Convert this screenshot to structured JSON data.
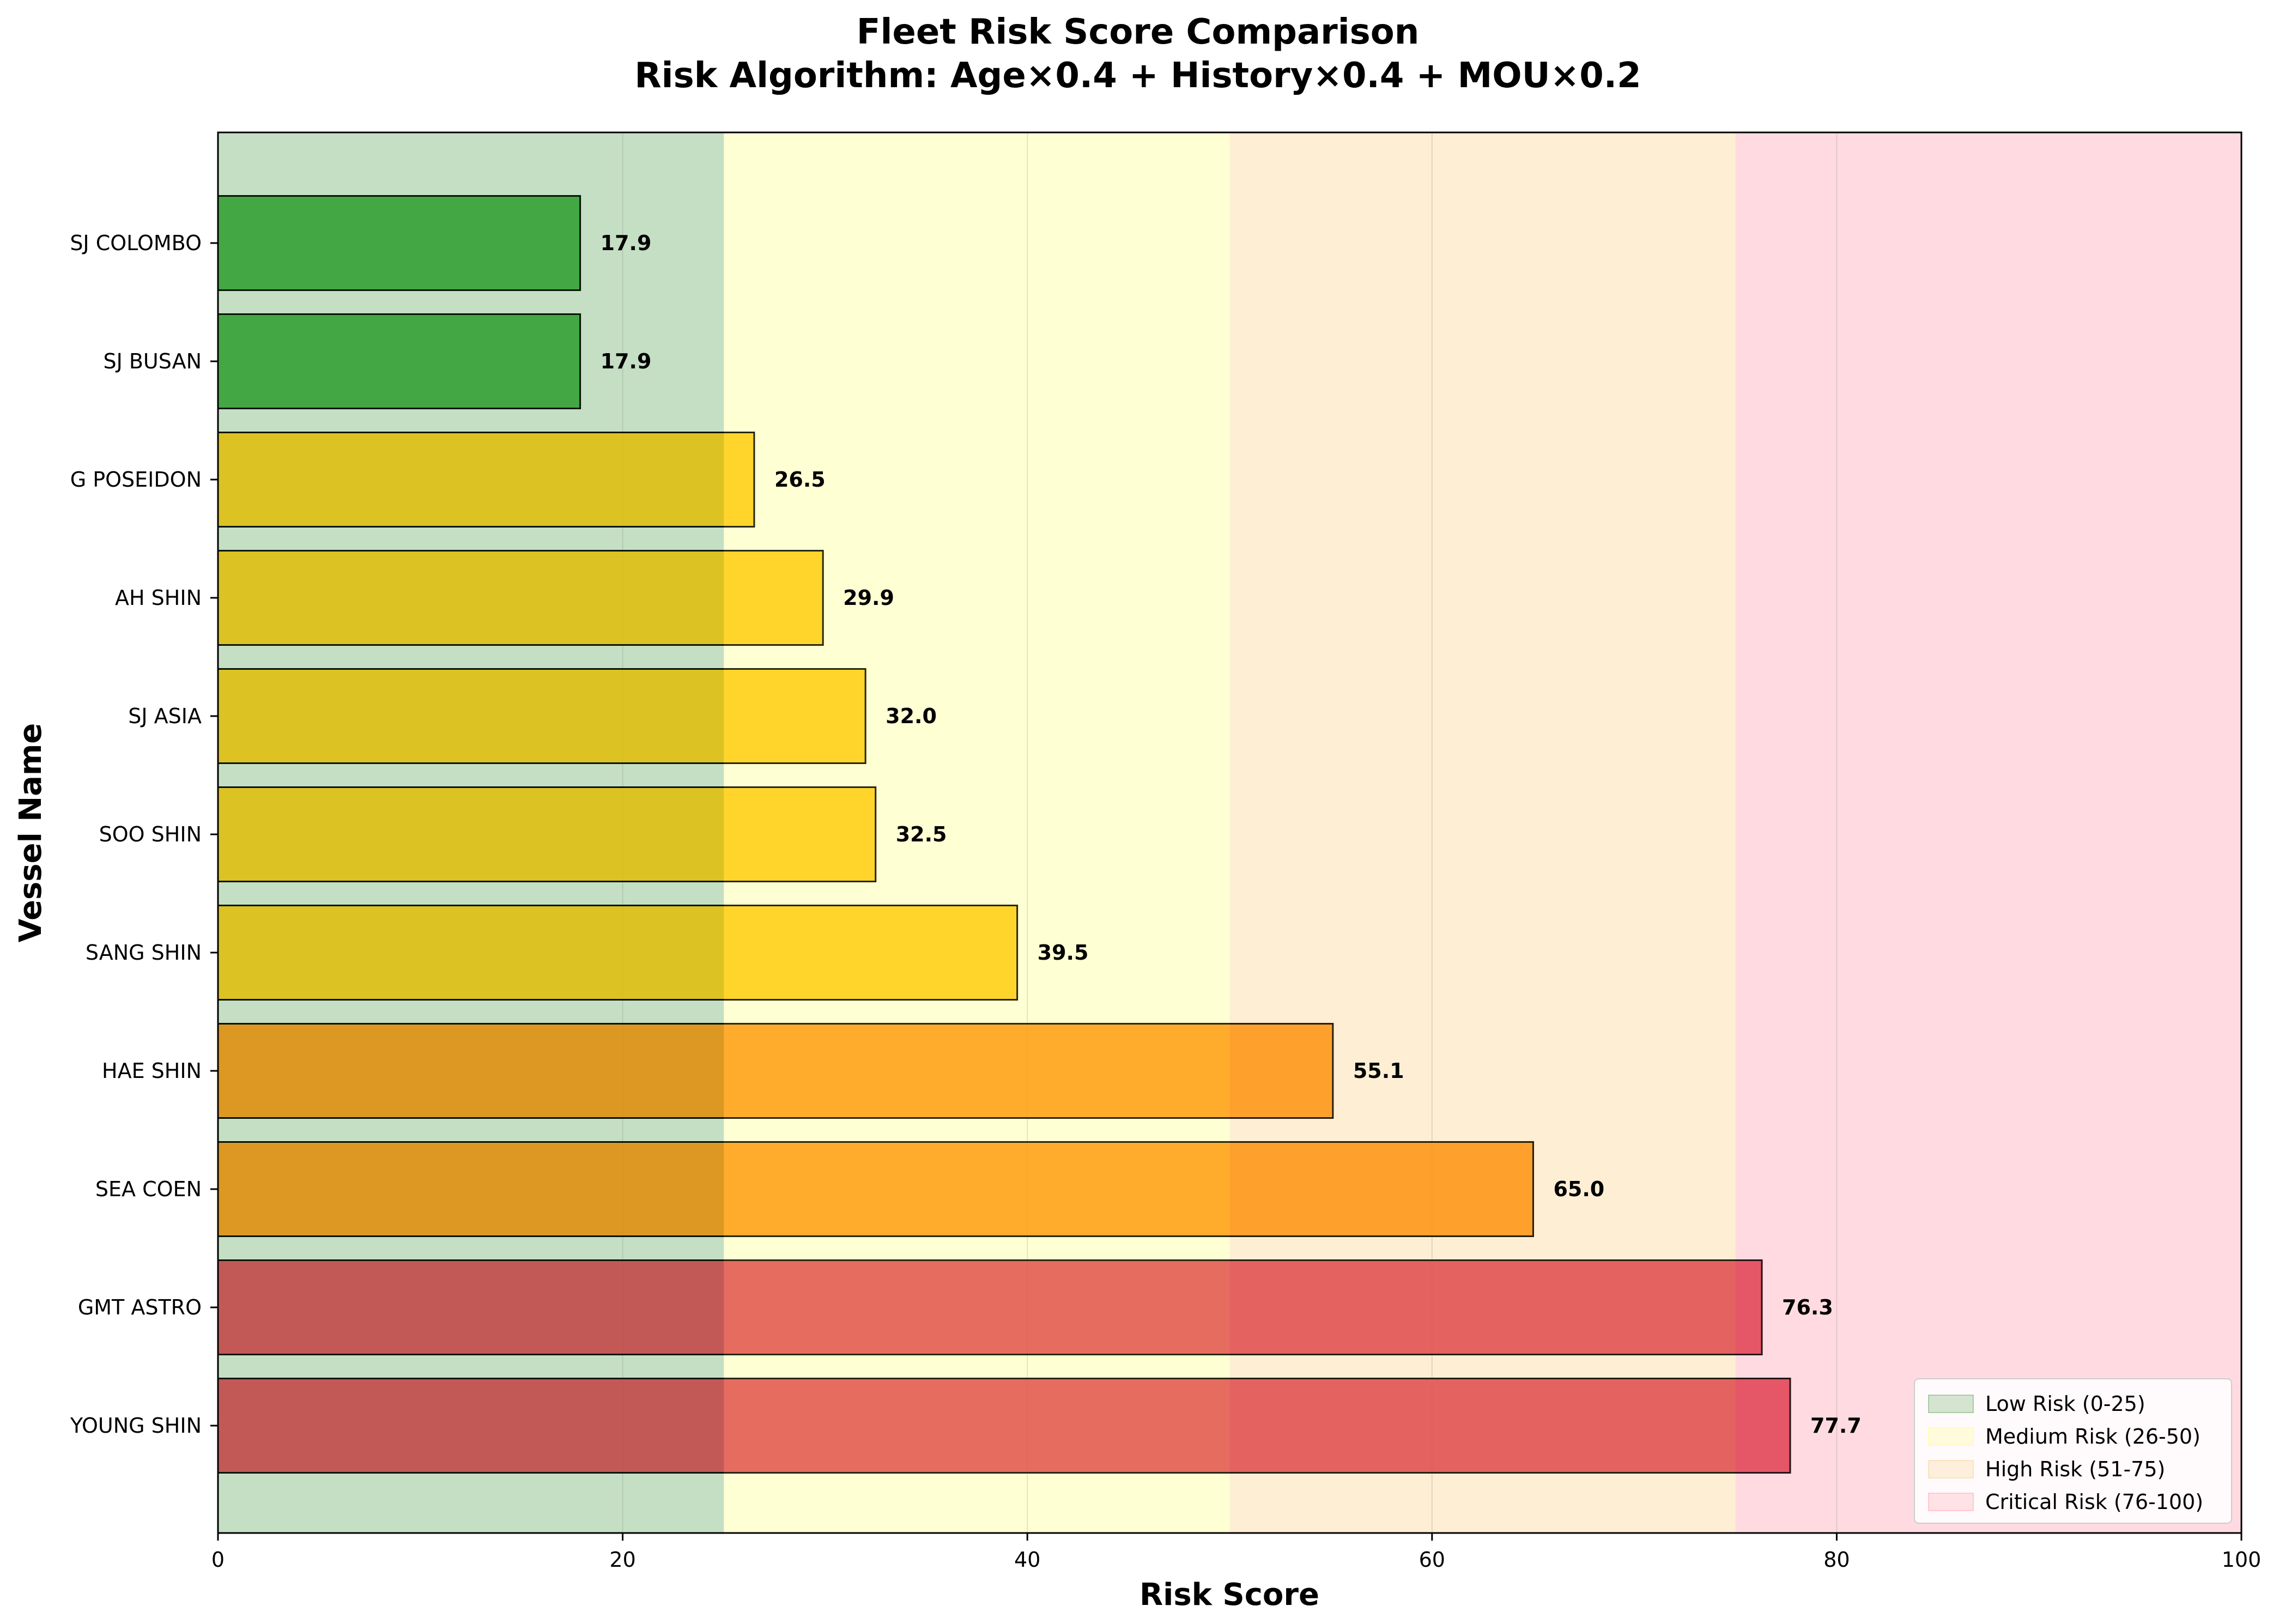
{
  "chart_data": {
    "type": "bar",
    "orientation": "horizontal",
    "title": "Fleet Risk Score Comparison",
    "subtitle": "Risk Algorithm: Age×0.4 + History×0.4 + MOU×0.2",
    "xlabel": "Risk Score",
    "ylabel": "Vessel Name",
    "xlim": [
      0,
      100
    ],
    "xticks": [
      "0",
      "20",
      "40",
      "60",
      "80",
      "100"
    ],
    "grid": "vertical",
    "legend_position": "bottom-right",
    "categories": [
      "SJ COLOMBO",
      "SJ BUSAN",
      "G POSEIDON",
      "AH SHIN",
      "SJ ASIA",
      "SOO SHIN",
      "SANG SHIN",
      "HAE SHIN",
      "SEA COEN",
      "GMT ASTRO",
      "YOUNG SHIN"
    ],
    "values": [
      17.9,
      17.9,
      26.5,
      29.9,
      32.0,
      32.5,
      39.5,
      55.1,
      65.0,
      76.3,
      77.7
    ],
    "value_labels": [
      "17.9",
      "17.9",
      "26.5",
      "29.9",
      "32.0",
      "32.5",
      "39.5",
      "55.1",
      "65.0",
      "76.3",
      "77.7"
    ],
    "bands": [
      {
        "name": "Low Risk (0-25)",
        "from": 0,
        "to": 25,
        "color": "#2e8b2e",
        "bar_color": "#2ca02c"
      },
      {
        "name": "Medium Risk (26-50)",
        "from": 25,
        "to": 50,
        "color": "#ffff66",
        "bar_color": "#ffc600"
      },
      {
        "name": "High Risk (51-75)",
        "from": 50,
        "to": 75,
        "color": "#f5c264",
        "bar_color": "#ff8c00"
      },
      {
        "name": "Critical Risk (76-100)",
        "from": 75,
        "to": 100,
        "color": "#ff8095",
        "bar_color": "#dc3545"
      }
    ]
  }
}
